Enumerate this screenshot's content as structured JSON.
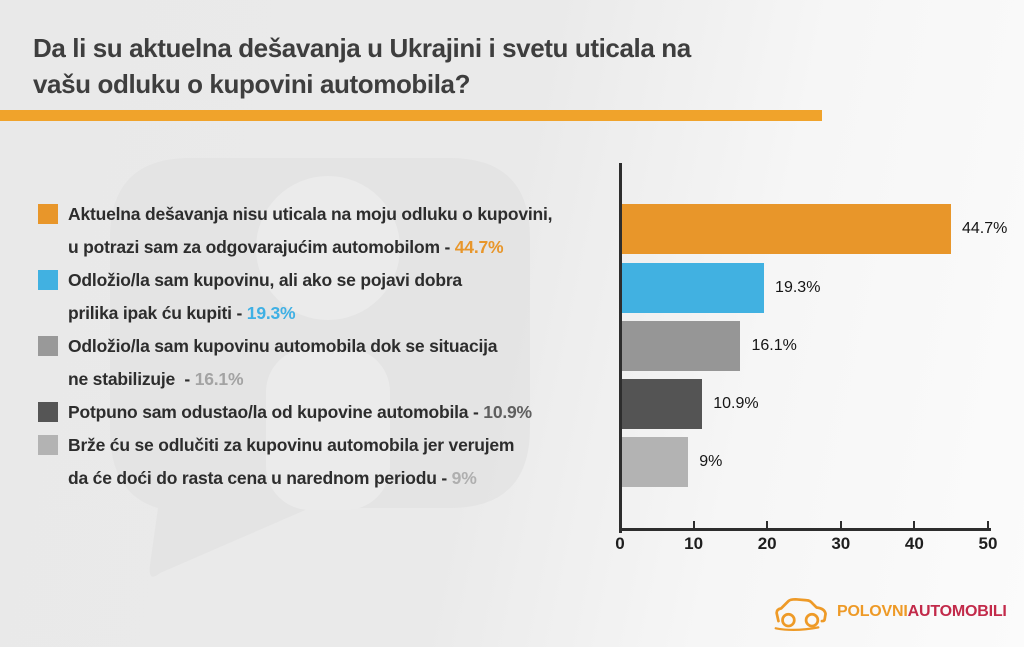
{
  "title": {
    "line1": "Da li su aktuelna dešavanja u Ukrajini i svetu uticala na",
    "line2": "vašu odluku o kupovini automobila?"
  },
  "accent": {
    "rule_color": "#f0a32b"
  },
  "legend": {
    "items": [
      {
        "color": "#e8962a",
        "line1": "Aktuelna dešavanja nisu uticala na moju odluku o kupovini,",
        "line2": "u potrazi sam za odgovarajućim automobilom - ",
        "value": "44.7%",
        "value_color": "#e8962a"
      },
      {
        "color": "#41b1e1",
        "line1": "Odložio/la sam kupovinu, ali ako se pojavi dobra",
        "line2": "prilika ipak ću kupiti - ",
        "value": "19.3%",
        "value_color": "#3fb0e4"
      },
      {
        "color": "#999999",
        "line1": "Odložio/la sam kupovinu automobila dok se situacija",
        "line2": "ne stabilizuje  - ",
        "value": "16.1%",
        "value_color": "#a3a3a3"
      },
      {
        "color": "#555555",
        "line1": "Potpuno sam odustao/la od kupovine automobila - ",
        "value": "10.9%",
        "value_color": "#5f5f5f"
      },
      {
        "color": "#b3b3b3",
        "line1": "Brže ću se odlučiti za kupovinu automobila jer verujem",
        "line2": "da će doći do rasta cena u narednom periodu - ",
        "value": "9%",
        "value_color": "#afafaf"
      }
    ]
  },
  "chart_data": {
    "type": "bar",
    "orientation": "horizontal",
    "title": "Da li su aktuelna dešavanja u Ukrajini i svetu uticala na vašu odluku o kupovini automobila?",
    "categories": [
      "Aktuelna dešavanja nisu uticala na moju odluku o kupovini, u potrazi sam za odgovarajućim automobilom",
      "Odložio/la sam kupovinu, ali ako se pojavi dobra prilika ipak ću kupiti",
      "Odložio/la sam kupovinu automobila dok se situacija ne stabilizuje",
      "Potpuno sam odustao/la od kupovine automobila",
      "Brže ću se odlučiti za kupovinu automobila jer verujem da će doći do rasta cena u narednom periodu"
    ],
    "values": [
      44.7,
      19.3,
      16.1,
      10.9,
      9
    ],
    "value_labels": [
      "44.7%",
      "19.3%",
      "16.1%",
      "10.9%",
      "9%"
    ],
    "colors": [
      "#e8962a",
      "#41b1e1",
      "#969696",
      "#545454",
      "#b3b3b3"
    ],
    "xlim": [
      0,
      50
    ],
    "xticks": [
      0,
      10,
      20,
      30,
      40,
      50
    ],
    "grid": false,
    "legend_position": "left"
  },
  "logo": {
    "brand": "PolovniAutomobili",
    "part1": "POLOVNI",
    "part2": "AUTOMOBILI",
    "part1_color": "#ee9a27",
    "part2_color": "#c22a4a"
  }
}
